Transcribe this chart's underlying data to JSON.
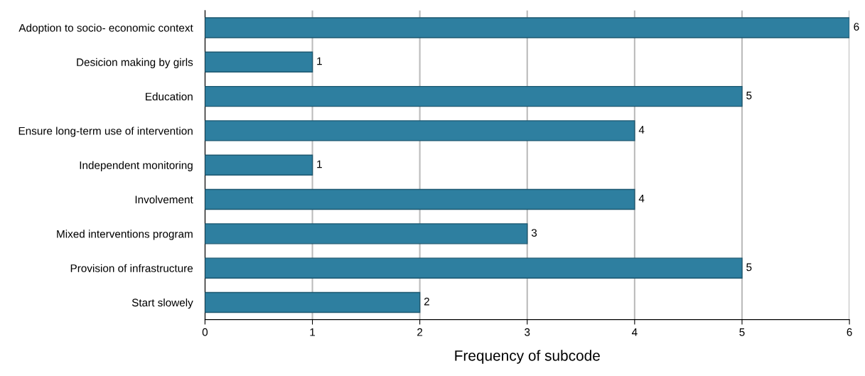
{
  "chart_data": {
    "type": "bar",
    "orientation": "horizontal",
    "xlabel": "Frequency of subcode",
    "categories": [
      "Adoption to socio- economic context",
      "Desicion making by girls",
      "Education",
      "Ensure long-term use of intervention",
      "Independent monitoring",
      "Involvement",
      "Mixed interventions program",
      "Provision of infrastructure",
      "Start slowely"
    ],
    "values": [
      6,
      1,
      5,
      4,
      1,
      4,
      3,
      5,
      2
    ],
    "color": "#2e7fa0",
    "xlim": [
      0,
      6
    ],
    "xticks": [
      0,
      1,
      2,
      3,
      4,
      5,
      6
    ],
    "grid": "x",
    "data_labels": true
  }
}
